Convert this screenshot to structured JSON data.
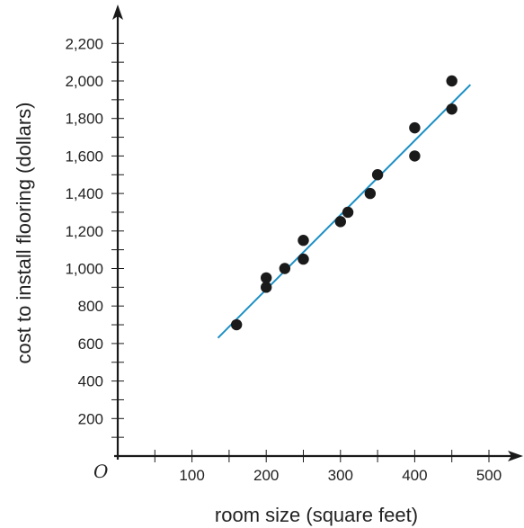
{
  "chart_data": {
    "type": "scatter",
    "xlabel": "room size (square feet)",
    "ylabel": "cost to install flooring (dollars)",
    "origin_label": "O",
    "xlim": [
      0,
      500
    ],
    "ylim": [
      0,
      2200
    ],
    "x_major_ticks": [
      100,
      200,
      300,
      400,
      500
    ],
    "x_minor_step": 50,
    "y_major_ticks": [
      200,
      400,
      600,
      800,
      1000,
      1200,
      1400,
      1600,
      1800,
      2000,
      2200
    ],
    "y_minor_step": 100,
    "x_tick_labels": [
      "100",
      "200",
      "300",
      "400",
      "500"
    ],
    "y_tick_labels": [
      "200",
      "400",
      "600",
      "800",
      "1,000",
      "1,200",
      "1,400",
      "1,600",
      "1,800",
      "2,000",
      "2,200"
    ],
    "grid": false,
    "points": [
      {
        "x": 160,
        "y": 700
      },
      {
        "x": 200,
        "y": 900
      },
      {
        "x": 200,
        "y": 950
      },
      {
        "x": 225,
        "y": 1000
      },
      {
        "x": 250,
        "y": 1050
      },
      {
        "x": 250,
        "y": 1150
      },
      {
        "x": 300,
        "y": 1250
      },
      {
        "x": 310,
        "y": 1300
      },
      {
        "x": 340,
        "y": 1400
      },
      {
        "x": 350,
        "y": 1500
      },
      {
        "x": 400,
        "y": 1600
      },
      {
        "x": 400,
        "y": 1750
      },
      {
        "x": 450,
        "y": 1850
      },
      {
        "x": 450,
        "y": 2000
      }
    ],
    "trend_line": {
      "x1": 135,
      "y1": 630,
      "x2": 475,
      "y2": 1980
    },
    "colors": {
      "points": "#1a1a1a",
      "trend_line": "#1b8fc4",
      "axis": "#1a1a1a"
    }
  }
}
